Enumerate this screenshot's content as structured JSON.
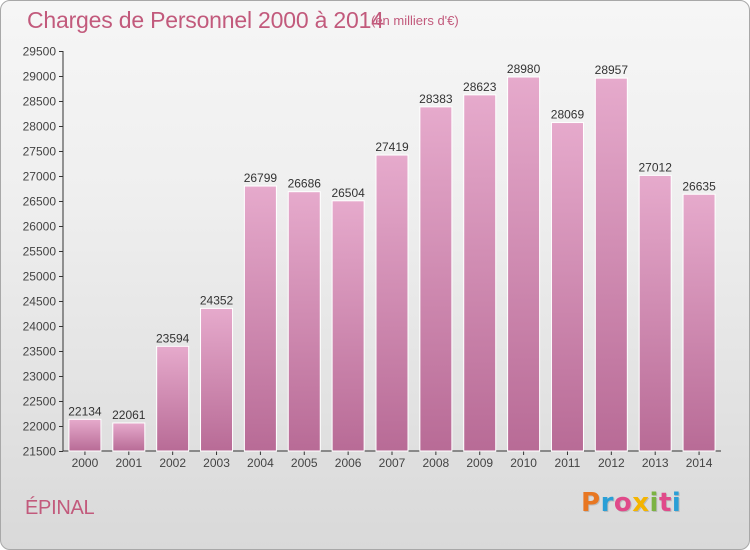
{
  "header": {
    "title": "Charges de Personnel 2000 à 2014",
    "unit": "(en milliers d'€)"
  },
  "footer": {
    "city": "ÉPINAL",
    "logo": "Proxiti",
    "logo_colors": [
      "#e87722",
      "#2a9fd6",
      "#e04a8a",
      "#f4b400",
      "#7cb342",
      "#e04a8a",
      "#2a9fd6"
    ]
  },
  "chart_data": {
    "type": "bar",
    "title": "Charges de Personnel 2000 à 2014",
    "subtitle": "(en milliers d'€)",
    "xlabel": "",
    "ylabel": "",
    "categories": [
      "2000",
      "2001",
      "2002",
      "2003",
      "2004",
      "2005",
      "2006",
      "2007",
      "2008",
      "2009",
      "2010",
      "2011",
      "2012",
      "2013",
      "2014"
    ],
    "values": [
      22134,
      22061,
      23594,
      24352,
      26799,
      26686,
      26504,
      27419,
      28383,
      28623,
      28980,
      28069,
      28957,
      27012,
      26635
    ],
    "ylim": [
      21500,
      29500
    ],
    "ytick_step": 500,
    "grid": false,
    "bar_color_top": "#e6aacc",
    "bar_color_bottom": "#b86b96",
    "text_color": "#c25a7c"
  }
}
